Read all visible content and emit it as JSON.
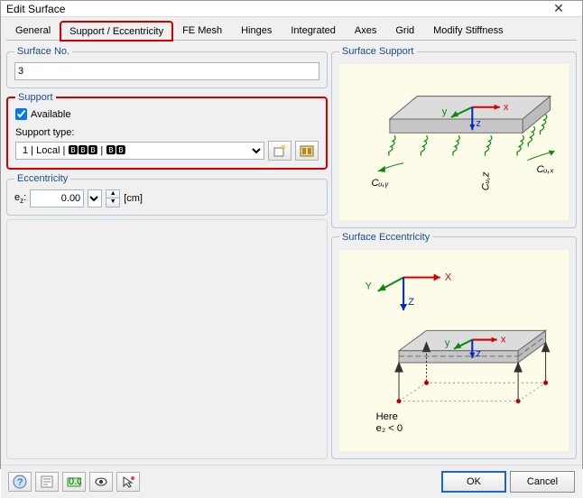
{
  "window": {
    "title": "Edit Surface"
  },
  "tabs": {
    "items": [
      {
        "label": "General"
      },
      {
        "label": "Support / Eccentricity",
        "active": true,
        "highlight": true
      },
      {
        "label": "FE Mesh"
      },
      {
        "label": "Hinges"
      },
      {
        "label": "Integrated"
      },
      {
        "label": "Axes"
      },
      {
        "label": "Grid"
      },
      {
        "label": "Modify Stiffness"
      }
    ]
  },
  "surfaceNo": {
    "legend": "Surface No.",
    "value": "3"
  },
  "support": {
    "legend": "Support",
    "available_label": "Available",
    "available_checked": true,
    "type_label": "Support type:",
    "type_value": "1   | Local  | 🅱🅱🅱 | 🅱🅱",
    "btn_new_tip": "Create new support",
    "btn_edit_tip": "Edit support"
  },
  "ecc": {
    "legend": "Eccentricity",
    "label_html": "e",
    "sub": "z",
    "colon": ":",
    "value": "0.00",
    "unit": "[cm]"
  },
  "previews": {
    "support_legend": "Surface Support",
    "ecc_legend": "Surface Eccentricity",
    "labels": {
      "x": "x",
      "y": "y",
      "z": "z",
      "X": "X",
      "Y": "Y",
      "Z": "Z",
      "cux": "Cᵤ,ₓ",
      "cuy": "Cᵤ,ᵧ",
      "cuz": "Cᵤ,z",
      "here": "Here",
      "ezlt0": "e₂ < 0"
    },
    "colors": {
      "slab_fill": "#dcdcdc",
      "slab_stroke": "#6b6b6b",
      "x_axis": "#d40000",
      "y_axis": "#0a8a0a",
      "z_axis": "#0028c4",
      "spring": "#0a8a0a",
      "bg": "#fdfce8",
      "support_mark": "#333333",
      "ecc_node": "#c00000"
    }
  },
  "buttons": {
    "ok": "OK",
    "cancel": "Cancel"
  }
}
